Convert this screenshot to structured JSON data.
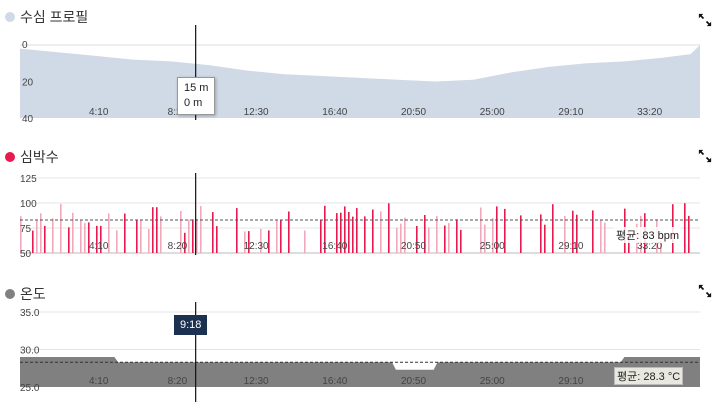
{
  "time_ticks": [
    "4:10",
    "8:20",
    "12:30",
    "16:40",
    "20:50",
    "25:00",
    "29:10",
    "33:20"
  ],
  "cursor_time": "9:18",
  "panels": {
    "depth": {
      "title": "수심 프로필",
      "color": "#cfdae6",
      "y_ticks": [
        "0",
        "20",
        "40"
      ],
      "ylim": [
        0,
        40
      ],
      "tooltip": {
        "line1": "15 m",
        "line2": "0 m"
      }
    },
    "heart": {
      "title": "심박수",
      "color": "#e8194f",
      "y_ticks": [
        "125",
        "100",
        "75",
        "50"
      ],
      "ylim": [
        50,
        125
      ],
      "average_label": "평균: 83 bpm",
      "average": 83
    },
    "temp": {
      "title": "온도",
      "color": "#808080",
      "y_ticks": [
        "35.0",
        "30.0",
        "25.0"
      ],
      "ylim": [
        25,
        35
      ],
      "average_label": "평균: 28.3 °C",
      "average": 28.3
    }
  },
  "chart_data": [
    {
      "type": "area",
      "title": "수심 프로필",
      "x_unit": "minutes",
      "x": [
        0,
        2,
        4,
        6,
        8,
        10,
        12,
        14,
        16,
        18,
        20,
        22,
        24,
        26,
        28,
        30,
        32,
        34,
        35.5,
        36
      ],
      "y": [
        2,
        4,
        6,
        8,
        9,
        11,
        14,
        16,
        17,
        18,
        19,
        20,
        19,
        15,
        12,
        10,
        9,
        7,
        5,
        0
      ],
      "ylim": [
        40,
        0
      ]
    },
    {
      "type": "bar",
      "title": "심박수",
      "ylim": [
        50,
        125
      ],
      "average": 83
    },
    {
      "type": "area",
      "title": "온도",
      "x_unit": "minutes",
      "x": [
        0,
        5,
        5.2,
        19.7,
        19.9,
        21.9,
        22.1,
        31.8,
        32,
        36
      ],
      "y": [
        29,
        29,
        28.3,
        28.3,
        27.3,
        27.3,
        28.3,
        28.3,
        29,
        29
      ],
      "ylim": [
        25,
        35
      ],
      "average": 28.3
    }
  ]
}
